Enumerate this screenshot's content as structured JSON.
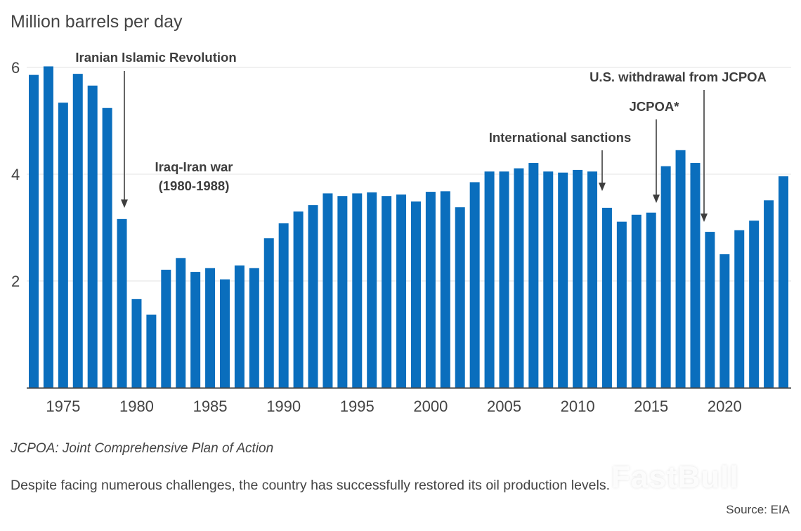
{
  "header": {
    "title": "Million barrels per day"
  },
  "colors": {
    "bar": "#0a6ebd",
    "grid": "#e3e3e3",
    "axis": "#444444",
    "annotation": "#3e3e3e"
  },
  "chart_data": {
    "type": "bar",
    "title": "Million barrels per day",
    "xlabel": "",
    "ylabel": "Million barrels per day",
    "ylim": [
      0,
      6
    ],
    "yticks": [
      2,
      4,
      6
    ],
    "grid": true,
    "x": [
      1973,
      1974,
      1975,
      1976,
      1977,
      1978,
      1979,
      1980,
      1981,
      1982,
      1983,
      1984,
      1985,
      1986,
      1987,
      1988,
      1989,
      1990,
      1991,
      1992,
      1993,
      1994,
      1995,
      1996,
      1997,
      1998,
      1999,
      2000,
      2001,
      2002,
      2003,
      2004,
      2005,
      2006,
      2007,
      2008,
      2009,
      2010,
      2011,
      2012,
      2013,
      2014,
      2015,
      2016,
      2017,
      2018,
      2019,
      2020,
      2021,
      2022,
      2023,
      2024
    ],
    "values": [
      5.86,
      6.02,
      5.34,
      5.88,
      5.66,
      5.24,
      3.16,
      1.66,
      1.37,
      2.21,
      2.43,
      2.17,
      2.24,
      2.03,
      2.29,
      2.24,
      2.8,
      3.08,
      3.3,
      3.42,
      3.64,
      3.59,
      3.64,
      3.66,
      3.59,
      3.62,
      3.49,
      3.67,
      3.68,
      3.38,
      3.85,
      4.05,
      4.05,
      4.11,
      4.21,
      4.05,
      4.03,
      4.08,
      4.05,
      3.37,
      3.11,
      3.24,
      3.28,
      4.15,
      4.45,
      4.21,
      2.92,
      2.5,
      2.95,
      3.13,
      3.51,
      3.96
    ],
    "xtick_labels": [
      "1975",
      "1980",
      "1985",
      "1990",
      "1995",
      "2000",
      "2005",
      "2010",
      "2015",
      "2020"
    ],
    "xticks": [
      1975,
      1980,
      1985,
      1990,
      1995,
      2000,
      2005,
      2010,
      2015,
      2020
    ],
    "annotations": [
      {
        "text": "Iranian Islamic Revolution",
        "year": 1979,
        "arrow": true
      },
      {
        "text": "Iraq-Iran war",
        "text2": "(1980-1988)",
        "arrow": false
      },
      {
        "text": "International sanctions",
        "year": 2012,
        "arrow": true
      },
      {
        "text": "JCPOA*",
        "year": 2015,
        "arrow": true
      },
      {
        "text": "U.S. withdrawal from JCPOA",
        "year": 2019,
        "arrow": true
      }
    ]
  },
  "footer": {
    "note": "JCPOA: Joint Comprehensive Plan of Action",
    "caption": "Despite facing numerous challenges, the country has successfully restored its oil production levels.",
    "source": "Source: EIA",
    "watermark": "FastBull"
  }
}
